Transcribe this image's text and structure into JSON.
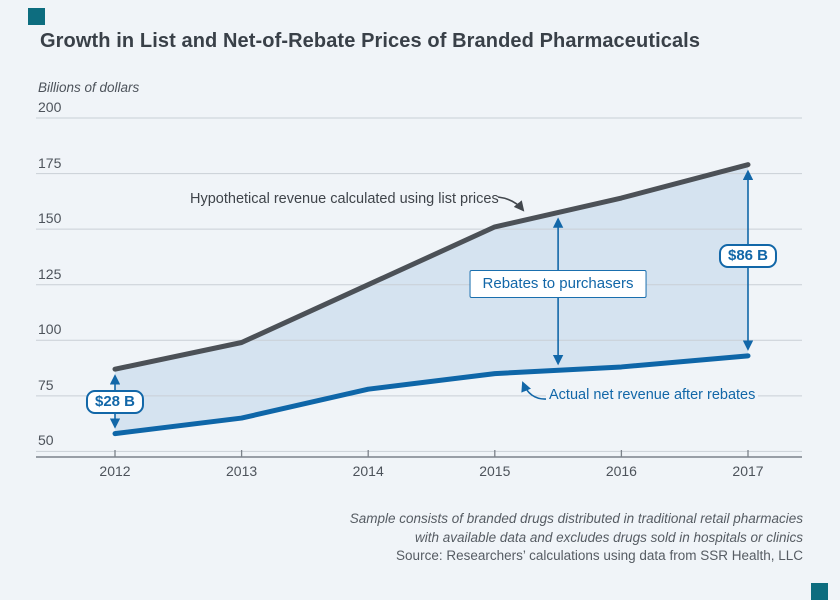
{
  "figure": {
    "accent_color": "#0d6d7f"
  },
  "chart_data": {
    "type": "line",
    "title": "Growth in List and Net-of-Rebate Prices of Branded Pharmaceuticals",
    "ylabel": "Billions of dollars",
    "xlabel": "",
    "x": [
      2012,
      2013,
      2014,
      2015,
      2016,
      2017
    ],
    "y_ticks": [
      200,
      175,
      150,
      125,
      100,
      75,
      50
    ],
    "ylim": [
      50,
      200
    ],
    "grid": true,
    "legend_position": "inline-annotations",
    "series": [
      {
        "name": "Hypothetical revenue calculated using list prices",
        "color": "#4c5157",
        "values": [
          87,
          99,
          125,
          151,
          164,
          179
        ]
      },
      {
        "name": "Actual net revenue after rebates",
        "color": "#0e66a8",
        "values": [
          58,
          65,
          78,
          85,
          88,
          93
        ]
      }
    ],
    "area_between": {
      "color": "#d5e3f0"
    },
    "annotations": [
      {
        "id": "gap-2012",
        "label": "$28 B",
        "year": 2012,
        "kind": "gap-arrow"
      },
      {
        "id": "gap-2017",
        "label": "$86 B",
        "year": 2017,
        "kind": "gap-arrow"
      },
      {
        "id": "rebates",
        "label": "Rebates to purchasers",
        "year": 2015.5,
        "kind": "gap-arrow"
      }
    ],
    "footnotes": [
      "Sample consists of branded drugs distributed in traditional retail pharmacies",
      "with available data and excludes drugs sold in hospitals or clinics",
      "Source: Researchers’ calculations using data from SSR Health, LLC"
    ]
  }
}
